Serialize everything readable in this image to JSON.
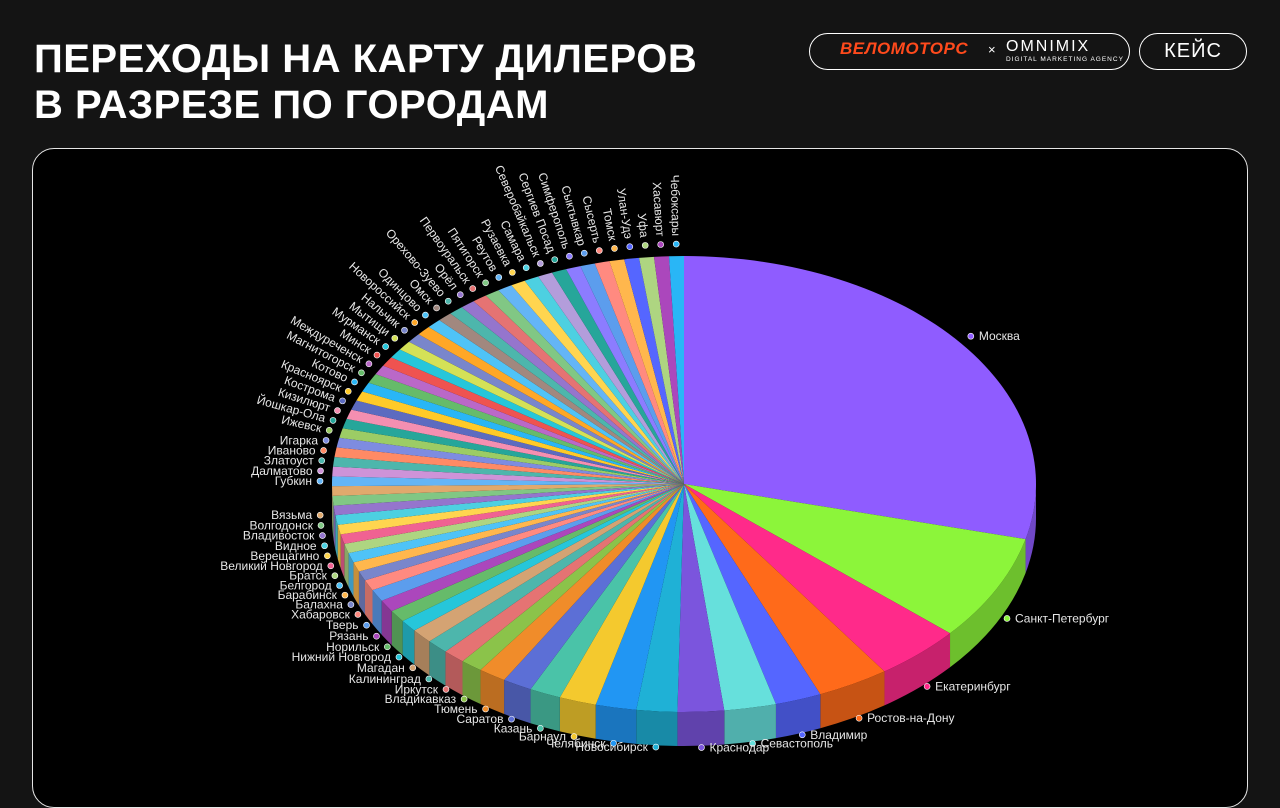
{
  "header": {
    "title_line1": "ПЕРЕХОДЫ НА КАРТУ ДИЛЕРОВ",
    "title_line2": "В РАЗРЕЗЕ ПО ГОРОДАМ",
    "brand_left": "ВЕЛОМОТОРС",
    "brand_sep": "×",
    "brand_right": "OMNIMIX",
    "brand_right_sub": "DIGITAL MARKETING AGENCY",
    "case_label": "КЕЙС"
  },
  "colors": {
    "background": "#141414",
    "panel": "#000000",
    "accent_velo": "#ff4a1c"
  },
  "chart_data": {
    "type": "pie",
    "style": "3d",
    "title": "",
    "legend": "none",
    "slices": [
      {
        "label": "Москва",
        "value": 34.0,
        "color": "#8f5cff"
      },
      {
        "label": "Санкт-Петербург",
        "value": 8.8,
        "color": "#8cf53a"
      },
      {
        "label": "Екатеринбург",
        "value": 4.7,
        "color": "#ff2a8a"
      },
      {
        "label": "Ростов-на-Дону",
        "value": 3.9,
        "color": "#ff6a1a"
      },
      {
        "label": "Владимир",
        "value": 2.5,
        "color": "#5566ff"
      },
      {
        "label": "Севастополь",
        "value": 2.8,
        "color": "#66e0dc"
      },
      {
        "label": "Краснодар",
        "value": 2.5,
        "color": "#7b55dd"
      },
      {
        "label": "Новосибирск",
        "value": 2.2,
        "color": "#1fb1d6"
      },
      {
        "label": "Челябинск",
        "value": 2.2,
        "color": "#2196f3"
      },
      {
        "label": "Барнаул",
        "value": 2.0,
        "color": "#f4c92e"
      },
      {
        "label": "Казань",
        "value": 1.7,
        "color": "#4ac3a8"
      },
      {
        "label": "Саратов",
        "value": 1.6,
        "color": "#5c6fd6"
      },
      {
        "label": "Тюмень",
        "value": 1.5,
        "color": "#f08c2a"
      },
      {
        "label": "Владикавказ",
        "value": 1.2,
        "color": "#8bc34a"
      },
      {
        "label": "Иркутск",
        "value": 1.2,
        "color": "#e57373"
      },
      {
        "label": "Калининград",
        "value": 1.2,
        "color": "#4db6ac"
      },
      {
        "label": "Магадан",
        "value": 1.2,
        "color": "#d4a373"
      },
      {
        "label": "Нижний Новгород",
        "value": 1.0,
        "color": "#26c6da"
      },
      {
        "label": "Норильск",
        "value": 1.0,
        "color": "#66bb6a"
      },
      {
        "label": "Рязань",
        "value": 1.0,
        "color": "#ab47bc"
      },
      {
        "label": "Тверь",
        "value": 1.0,
        "color": "#5c9ded"
      },
      {
        "label": "Хабаровск",
        "value": 0.9,
        "color": "#ff8a80"
      },
      {
        "label": "Балахна",
        "value": 0.8,
        "color": "#7986cb"
      },
      {
        "label": "Барабинск",
        "value": 0.8,
        "color": "#ffb74d"
      },
      {
        "label": "Белгород",
        "value": 0.8,
        "color": "#4fc3f7"
      },
      {
        "label": "Братск",
        "value": 0.8,
        "color": "#aed581"
      },
      {
        "label": "Великий Новгород",
        "value": 0.8,
        "color": "#f06292"
      },
      {
        "label": "Верещагино",
        "value": 0.8,
        "color": "#ffd54f"
      },
      {
        "label": "Видное",
        "value": 0.8,
        "color": "#4dd0e1"
      },
      {
        "label": "Владивосток",
        "value": 0.8,
        "color": "#9575cd"
      },
      {
        "label": "Волгодонск",
        "value": 0.8,
        "color": "#81c784"
      },
      {
        "label": "Вязьма",
        "value": 0.8,
        "color": "#e0a96d"
      },
      {
        "label": "Губкин",
        "value": 0.8,
        "color": "#64b5f6"
      },
      {
        "label": "Далматово",
        "value": 0.8,
        "color": "#ce93d8"
      },
      {
        "label": "Златоуст",
        "value": 0.8,
        "color": "#4db6ac"
      },
      {
        "label": "Иваново",
        "value": 0.8,
        "color": "#ff8a65"
      },
      {
        "label": "Игарка",
        "value": 0.8,
        "color": "#7e8ce0"
      },
      {
        "label": "Ижевск",
        "value": 0.8,
        "color": "#9ccc65"
      },
      {
        "label": "Йошкар-Ола",
        "value": 0.8,
        "color": "#26a69a"
      },
      {
        "label": "Кизилюрт",
        "value": 0.8,
        "color": "#f48fb1"
      },
      {
        "label": "Кострома",
        "value": 0.8,
        "color": "#5c6bc0"
      },
      {
        "label": "Красноярск",
        "value": 0.8,
        "color": "#ffca28"
      },
      {
        "label": "Котово",
        "value": 0.8,
        "color": "#29b6f6"
      },
      {
        "label": "Магнитогорск",
        "value": 0.8,
        "color": "#66bb6a"
      },
      {
        "label": "Междуреченск",
        "value": 0.8,
        "color": "#ba68c8"
      },
      {
        "label": "Минск",
        "value": 0.8,
        "color": "#ef5350"
      },
      {
        "label": "Мурманск",
        "value": 0.8,
        "color": "#26c6da"
      },
      {
        "label": "Мытищи",
        "value": 0.8,
        "color": "#d4e157"
      },
      {
        "label": "Нальчик",
        "value": 0.8,
        "color": "#7986cb"
      },
      {
        "label": "Новороссийск",
        "value": 0.8,
        "color": "#ffa726"
      },
      {
        "label": "Одинцово",
        "value": 0.8,
        "color": "#4fc3f7"
      },
      {
        "label": "Омск",
        "value": 0.8,
        "color": "#a1887f"
      },
      {
        "label": "Орехово-Зуево",
        "value": 0.8,
        "color": "#4db6ac"
      },
      {
        "label": "Орёл",
        "value": 0.8,
        "color": "#9575cd"
      },
      {
        "label": "Первоуральск",
        "value": 0.8,
        "color": "#e57373"
      },
      {
        "label": "Пятигорск",
        "value": 0.8,
        "color": "#81c784"
      },
      {
        "label": "Реутов",
        "value": 0.8,
        "color": "#64b5f6"
      },
      {
        "label": "Рузаевка",
        "value": 0.8,
        "color": "#ffd54f"
      },
      {
        "label": "Самара",
        "value": 0.8,
        "color": "#4dd0e1"
      },
      {
        "label": "Северобайкальск",
        "value": 0.8,
        "color": "#b39ddb"
      },
      {
        "label": "Сергиев Посад",
        "value": 0.8,
        "color": "#26a69a"
      },
      {
        "label": "Симферополь",
        "value": 0.8,
        "color": "#8c7cff"
      },
      {
        "label": "Сыктывкар",
        "value": 0.8,
        "color": "#5c9ded"
      },
      {
        "label": "Сысерть",
        "value": 0.8,
        "color": "#ff8a80"
      },
      {
        "label": "Томск",
        "value": 0.8,
        "color": "#ffb74d"
      },
      {
        "label": "Улан-Удэ",
        "value": 0.8,
        "color": "#5566ff"
      },
      {
        "label": "Уфа",
        "value": 0.8,
        "color": "#aed581"
      },
      {
        "label": "Хасавюрт",
        "value": 0.8,
        "color": "#ab47bc"
      },
      {
        "label": "Чебоксары",
        "value": 0.8,
        "color": "#29b6f6"
      }
    ]
  }
}
